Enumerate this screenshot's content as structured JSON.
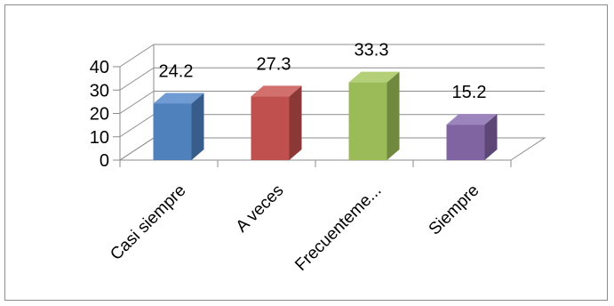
{
  "chart_data": {
    "type": "bar",
    "style": "3d-column",
    "categories": [
      "Casi siempre",
      "A veces",
      "Frecuenteme...",
      "Siempre"
    ],
    "values": [
      24.2,
      27.3,
      33.3,
      15.2
    ],
    "data_labels": [
      "24.2",
      "27.3",
      "33.3",
      "15.2"
    ],
    "yticks": [
      "0",
      "10",
      "20",
      "30",
      "40"
    ],
    "ylim": [
      0,
      40
    ],
    "grid": true,
    "legend": "none",
    "colors": [
      "#4f81bd",
      "#c0504d",
      "#9bbb59",
      "#8064a2"
    ],
    "side_colors": [
      "#385d8a",
      "#8c3836",
      "#71893f",
      "#5c4776"
    ],
    "top_colors": [
      "#6f9ad2",
      "#d1706d",
      "#b3cf78",
      "#9c84bd"
    ]
  }
}
